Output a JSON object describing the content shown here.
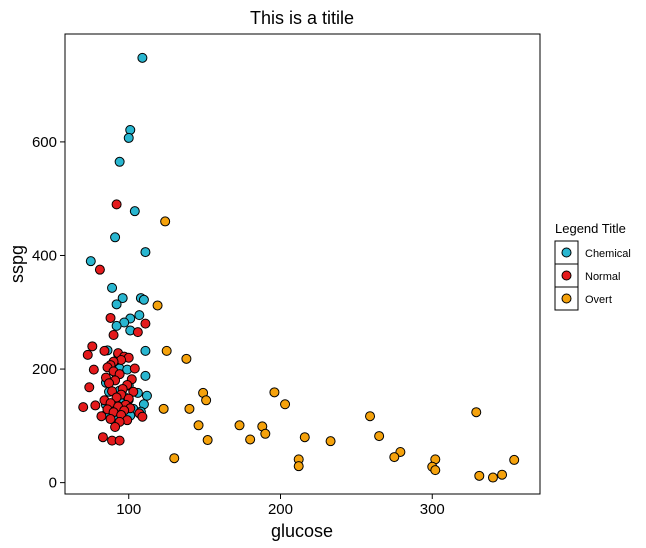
{
  "chart_data": {
    "type": "scatter",
    "title": "This is a titile",
    "xlabel": "glucose",
    "ylabel": "sspg",
    "xlim": [
      58,
      371
    ],
    "ylim": [
      -20,
      790
    ],
    "xticks": [
      100,
      200,
      300
    ],
    "yticks": [
      0,
      200,
      400,
      600
    ],
    "grid": false,
    "legend": {
      "title": "Legend Title",
      "position": "right"
    },
    "series": [
      {
        "name": "Chemical",
        "color": "#29b6d0",
        "points": [
          [
            109,
            748
          ],
          [
            101,
            621
          ],
          [
            100,
            607
          ],
          [
            94,
            565
          ],
          [
            104,
            478
          ],
          [
            91,
            432
          ],
          [
            111,
            406
          ],
          [
            75,
            390
          ],
          [
            89,
            343
          ],
          [
            96,
            325
          ],
          [
            108,
            325
          ],
          [
            110,
            322
          ],
          [
            92,
            314
          ],
          [
            107,
            295
          ],
          [
            101,
            289
          ],
          [
            97,
            282
          ],
          [
            92,
            276
          ],
          [
            101,
            268
          ],
          [
            86,
            233
          ],
          [
            111,
            232
          ],
          [
            93,
            226
          ],
          [
            90,
            210
          ],
          [
            94,
            201
          ],
          [
            99,
            199
          ],
          [
            92,
            189
          ],
          [
            111,
            188
          ],
          [
            85,
            176
          ],
          [
            100,
            171
          ],
          [
            94,
            162
          ],
          [
            87,
            160
          ],
          [
            106,
            158
          ],
          [
            112,
            153
          ],
          [
            97,
            151
          ],
          [
            100,
            146
          ],
          [
            95,
            140
          ],
          [
            110,
            138
          ],
          [
            85,
            137
          ],
          [
            93,
            135
          ],
          [
            103,
            130
          ],
          [
            88,
            128
          ],
          [
            108,
            125
          ],
          [
            96,
            122
          ],
          [
            85,
            120
          ],
          [
            101,
            118
          ],
          [
            92,
            114
          ]
        ]
      },
      {
        "name": "Normal",
        "color": "#e41a1c",
        "points": [
          [
            92,
            490
          ],
          [
            81,
            375
          ],
          [
            88,
            290
          ],
          [
            111,
            280
          ],
          [
            106,
            265
          ],
          [
            90,
            260
          ],
          [
            76,
            240
          ],
          [
            84,
            232
          ],
          [
            93,
            228
          ],
          [
            73,
            225
          ],
          [
            97,
            222
          ],
          [
            100,
            220
          ],
          [
            95,
            216
          ],
          [
            90,
            213
          ],
          [
            88,
            207
          ],
          [
            86,
            203
          ],
          [
            104,
            201
          ],
          [
            77,
            199
          ],
          [
            90,
            196
          ],
          [
            94,
            191
          ],
          [
            85,
            185
          ],
          [
            102,
            182
          ],
          [
            91,
            180
          ],
          [
            87,
            175
          ],
          [
            99,
            172
          ],
          [
            74,
            168
          ],
          [
            96,
            165
          ],
          [
            89,
            161
          ],
          [
            103,
            160
          ],
          [
            95,
            155
          ],
          [
            92,
            150
          ],
          [
            100,
            148
          ],
          [
            84,
            145
          ],
          [
            88,
            140
          ],
          [
            98,
            137
          ],
          [
            78,
            136
          ],
          [
            93,
            134
          ],
          [
            70,
            133
          ],
          [
            101,
            131
          ],
          [
            86,
            129
          ],
          [
            97,
            127
          ],
          [
            90,
            124
          ],
          [
            107,
            122
          ],
          [
            95,
            119
          ],
          [
            82,
            117
          ],
          [
            109,
            116
          ],
          [
            88,
            112
          ],
          [
            99,
            110
          ],
          [
            94,
            107
          ],
          [
            91,
            98
          ],
          [
            83,
            80
          ],
          [
            89,
            74
          ],
          [
            94,
            74
          ]
        ]
      },
      {
        "name": "Overt",
        "color": "#f5a20c",
        "points": [
          [
            124,
            460
          ],
          [
            119,
            312
          ],
          [
            138,
            218
          ],
          [
            125,
            232
          ],
          [
            149,
            158
          ],
          [
            196,
            159
          ],
          [
            151,
            145
          ],
          [
            203,
            138
          ],
          [
            140,
            130
          ],
          [
            123,
            130
          ],
          [
            329,
            124
          ],
          [
            259,
            117
          ],
          [
            146,
            101
          ],
          [
            173,
            101
          ],
          [
            188,
            99
          ],
          [
            190,
            86
          ],
          [
            216,
            80
          ],
          [
            265,
            82
          ],
          [
            152,
            75
          ],
          [
            180,
            76
          ],
          [
            233,
            73
          ],
          [
            279,
            54
          ],
          [
            275,
            45
          ],
          [
            130,
            43
          ],
          [
            212,
            41
          ],
          [
            302,
            41
          ],
          [
            354,
            40
          ],
          [
            300,
            28
          ],
          [
            212,
            29
          ],
          [
            302,
            22
          ],
          [
            331,
            12
          ],
          [
            346,
            14
          ],
          [
            340,
            9
          ]
        ]
      }
    ]
  }
}
